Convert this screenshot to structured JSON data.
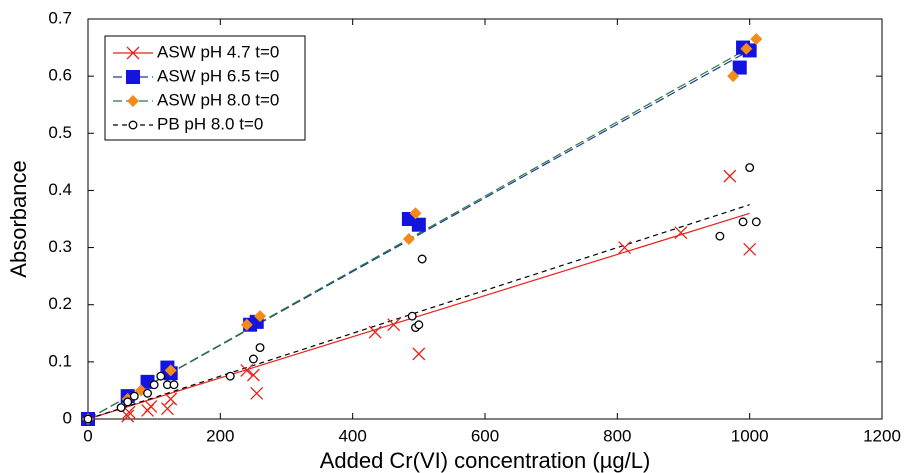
{
  "chart_data": {
    "type": "scatter",
    "x_label": "Added Cr(VI) concentration (µg/L)",
    "y_label": "Absorbance",
    "xlim": [
      0,
      1200
    ],
    "xticks": [
      0,
      200,
      400,
      600,
      800,
      1000,
      1200
    ],
    "ylim": [
      0,
      0.7
    ],
    "yticks": [
      0,
      0.1,
      0.2,
      0.3,
      0.4,
      0.5,
      0.6,
      0.7
    ],
    "legend": "upper left",
    "series": [
      {
        "name": "ASW pH 4.7 t=0",
        "color": "#e8221c",
        "marker": "x",
        "line_color": "#e8221c",
        "dash": "none",
        "x": [
          0,
          60,
          62,
          90,
          95,
          120,
          125,
          240,
          250,
          255,
          434,
          462,
          500,
          811,
          896,
          970,
          1000
        ],
        "y": [
          0,
          0.005,
          0.012,
          0.015,
          0.022,
          0.018,
          0.035,
          0.085,
          0.077,
          0.045,
          0.152,
          0.165,
          0.114,
          0.3,
          0.326,
          0.425,
          0.297
        ],
        "fit_x": [
          0,
          1000
        ],
        "fit_y": [
          0,
          0.36
        ]
      },
      {
        "name": "ASW pH 6.5 t=0",
        "color": "#1414e0",
        "marker": "square",
        "line_color": "#1a3aa0",
        "dash": "9,4",
        "x": [
          0,
          60,
          90,
          120,
          125,
          245,
          255,
          485,
          500,
          990,
          1000,
          985
        ],
        "y": [
          0,
          0.04,
          0.065,
          0.09,
          0.08,
          0.165,
          0.17,
          0.35,
          0.34,
          0.65,
          0.645,
          0.615
        ],
        "fit_x": [
          0,
          1000
        ],
        "fit_y": [
          0,
          0.645
        ]
      },
      {
        "name": "ASW pH 8.0 t=0",
        "color": "#f28a1c",
        "marker": "diamond",
        "line_color": "#2a7a3a",
        "dash": "9,4",
        "x": [
          0,
          60,
          80,
          125,
          240,
          260,
          485,
          495,
          975,
          995,
          1010
        ],
        "y": [
          0,
          0.035,
          0.05,
          0.085,
          0.165,
          0.18,
          0.315,
          0.36,
          0.6,
          0.648,
          0.665
        ],
        "fit_x": [
          0,
          1000
        ],
        "fit_y": [
          0,
          0.65
        ]
      },
      {
        "name": "PB pH 8.0 t=0",
        "color": "#000000",
        "marker": "circle",
        "line_color": "#000000",
        "dash": "5,4",
        "x": [
          0,
          50,
          60,
          70,
          90,
          100,
          110,
          120,
          130,
          215,
          250,
          260,
          490,
          495,
          500,
          505,
          955,
          990,
          1000,
          1010
        ],
        "y": [
          0,
          0.02,
          0.03,
          0.04,
          0.045,
          0.06,
          0.075,
          0.06,
          0.06,
          0.075,
          0.105,
          0.125,
          0.18,
          0.16,
          0.165,
          0.28,
          0.32,
          0.345,
          0.44,
          0.345
        ],
        "fit_x": [
          0,
          1000
        ],
        "fit_y": [
          0,
          0.375
        ]
      }
    ]
  }
}
